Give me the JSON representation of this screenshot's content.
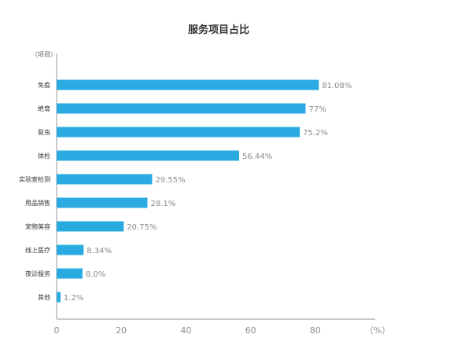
{
  "chart_data": {
    "type": "bar",
    "orientation": "horizontal",
    "title": "服务项目占比",
    "y_axis_label": "（项目）",
    "x_axis_unit": "（%）",
    "categories": [
      "免疫",
      "绝育",
      "驱虫",
      "体检",
      "实验室检测",
      "用品销售",
      "宠物美容",
      "线上医疗",
      "夜诊服务",
      "其他"
    ],
    "values": [
      81.08,
      77,
      75.2,
      56.44,
      29.55,
      28.1,
      20.75,
      8.34,
      8.0,
      1.2
    ],
    "value_labels": [
      "81.08%",
      "77%",
      "75.2%",
      "56.44%",
      "29.55%",
      "28.1%",
      "20.75%",
      "8.34%",
      "8.0%",
      "1.2%"
    ],
    "xlim": [
      0,
      100
    ],
    "x_ticks": [
      "0",
      "20",
      "40",
      "60",
      "80"
    ],
    "bar_color": "#29abe2",
    "grid": false,
    "legend": "none"
  }
}
